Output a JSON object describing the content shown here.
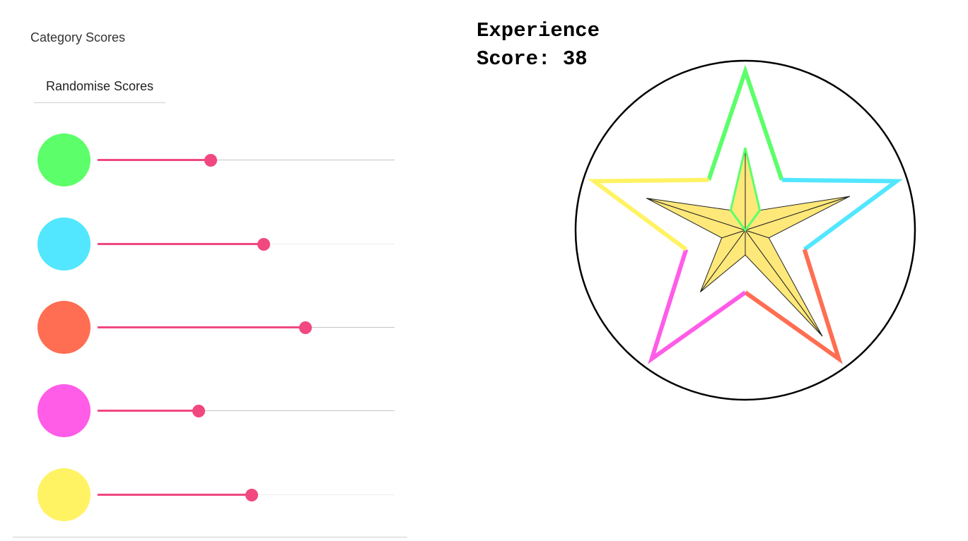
{
  "panel": {
    "title": "Category Scores",
    "randomise_label": "Randomise Scores"
  },
  "categories": [
    {
      "color": "#5cff69",
      "value": 0.38
    },
    {
      "color": "#52e6ff",
      "value": 0.56
    },
    {
      "color": "#ff6e52",
      "value": 0.7
    },
    {
      "color": "#ff5ce8",
      "value": 0.34
    },
    {
      "color": "#fff364",
      "value": 0.52
    }
  ],
  "score": {
    "label_line1": "Experience",
    "label_line2": "Score: 38"
  },
  "colors": {
    "slider_accent": "#f0487f",
    "star_fill": "#ffe87a",
    "circle_stroke": "#000000"
  }
}
